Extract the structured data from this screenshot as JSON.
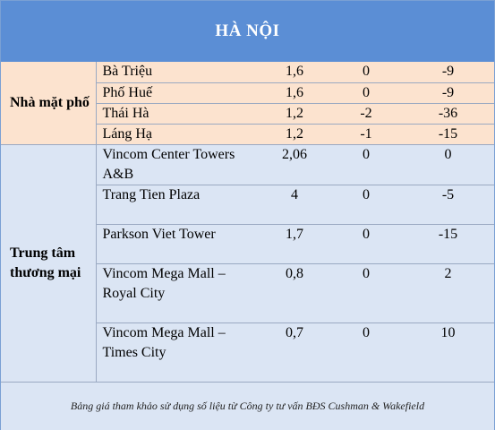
{
  "title": "HÀ NỘI",
  "groups": [
    {
      "label": "Nhà mặt phố",
      "rows": [
        {
          "name": "Bà Triệu",
          "c1": "1,6",
          "c2": "0",
          "c3": "-9"
        },
        {
          "name": "Phố Huế",
          "c1": "1,6",
          "c2": "0",
          "c3": "-9"
        },
        {
          "name": "Thái Hà",
          "c1": "1,2",
          "c2": "-2",
          "c3": "-36"
        },
        {
          "name": "Láng Hạ",
          "c1": "1,2",
          "c2": "-1",
          "c3": "-15"
        }
      ]
    },
    {
      "label": "Trung tâm thương mại",
      "rows": [
        {
          "name": "Vincom Center Towers A&B",
          "c1": "2,06",
          "c2": "0",
          "c3": "0"
        },
        {
          "name": "Trang Tien Plaza",
          "c1": "4",
          "c2": "0",
          "c3": "-5"
        },
        {
          "name": "Parkson Viet Tower",
          "c1": "1,7",
          "c2": "0",
          "c3": "-15"
        },
        {
          "name": "Vincom Mega Mall – Royal City",
          "c1": "0,8",
          "c2": "0",
          "c3": "2"
        },
        {
          "name": "Vincom Mega Mall – Times City",
          "c1": "0,7",
          "c2": "0",
          "c3": "10"
        }
      ]
    }
  ],
  "footer": "Bảng giá tham khảo sử dụng số liệu từ Công ty tư vấn BĐS Cushman & Wakefield"
}
